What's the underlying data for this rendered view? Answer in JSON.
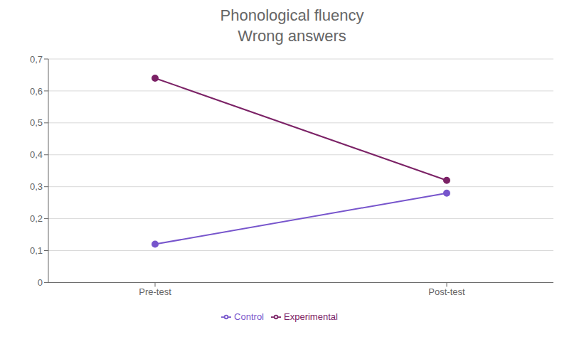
{
  "chart_data": {
    "type": "line",
    "title": "Phonological fluency\nWrong answers",
    "categories": [
      "Pre-test",
      "Post-test"
    ],
    "series": [
      {
        "name": "Experimental",
        "color": "#7B2266",
        "values": [
          0.64,
          0.32
        ],
        "marker": "circle"
      },
      {
        "name": "Control",
        "color": "#7755CC",
        "values": [
          0.12,
          0.28
        ],
        "marker": "circle"
      }
    ],
    "ylim": [
      0,
      0.7
    ],
    "yticks": [
      0,
      {
        "value": 0.1,
        "label": "0,1"
      },
      {
        "value": 0.2,
        "label": "0,2"
      },
      {
        "value": 0.3,
        "label": "0,3"
      },
      {
        "value": 0.4,
        "label": "0,4"
      },
      {
        "value": 0.5,
        "label": "0,5"
      },
      {
        "value": 0.6,
        "label": "0,6"
      },
      {
        "value": 0.7,
        "label": "0,7"
      }
    ],
    "grid": "y",
    "legend": "bottom"
  }
}
